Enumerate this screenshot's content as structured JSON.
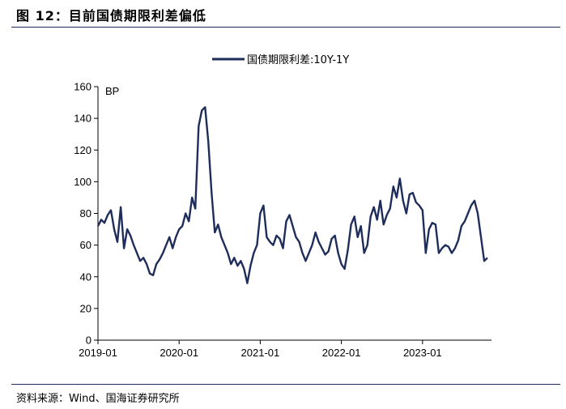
{
  "figure": {
    "title": "图 12：目前国债期限利差偏低",
    "source": "资料来源：Wind、国海证券研究所"
  },
  "chart_data": {
    "type": "line",
    "title": "图 12：目前国债期限利差偏低",
    "xlabel": "",
    "ylabel": "BP",
    "ylim": [
      0,
      160
    ],
    "yticks": [
      "0",
      "20",
      "40",
      "60",
      "80",
      "100",
      "120",
      "140",
      "160"
    ],
    "xticks": [
      "2019-01",
      "2020-01",
      "2021-01",
      "2022-01",
      "2023-01"
    ],
    "xlim_years": [
      2019.0,
      2023.85
    ],
    "legend": "top-center",
    "grid": false,
    "colors": {
      "series": "#1f2d5a",
      "axis": "#000000"
    },
    "series": [
      {
        "name": "国债期限利差:10Y-1Y",
        "x": [
          2019.0,
          2019.04,
          2019.08,
          2019.12,
          2019.16,
          2019.2,
          2019.24,
          2019.28,
          2019.32,
          2019.36,
          2019.4,
          2019.44,
          2019.48,
          2019.52,
          2019.56,
          2019.6,
          2019.64,
          2019.68,
          2019.72,
          2019.76,
          2019.8,
          2019.84,
          2019.88,
          2019.92,
          2019.96,
          2020.0,
          2020.04,
          2020.08,
          2020.12,
          2020.16,
          2020.2,
          2020.24,
          2020.28,
          2020.32,
          2020.36,
          2020.4,
          2020.44,
          2020.48,
          2020.52,
          2020.56,
          2020.6,
          2020.64,
          2020.68,
          2020.72,
          2020.76,
          2020.8,
          2020.84,
          2020.88,
          2020.92,
          2020.96,
          2021.0,
          2021.04,
          2021.08,
          2021.12,
          2021.16,
          2021.2,
          2021.24,
          2021.28,
          2021.32,
          2021.36,
          2021.4,
          2021.44,
          2021.48,
          2021.52,
          2021.56,
          2021.6,
          2021.64,
          2021.68,
          2021.72,
          2021.76,
          2021.8,
          2021.84,
          2021.88,
          2021.92,
          2021.96,
          2022.0,
          2022.04,
          2022.08,
          2022.12,
          2022.16,
          2022.2,
          2022.24,
          2022.28,
          2022.32,
          2022.36,
          2022.4,
          2022.44,
          2022.48,
          2022.52,
          2022.56,
          2022.6,
          2022.64,
          2022.68,
          2022.72,
          2022.76,
          2022.8,
          2022.84,
          2022.88,
          2022.92,
          2022.96,
          2023.0,
          2023.04,
          2023.08,
          2023.12,
          2023.16,
          2023.2,
          2023.24,
          2023.28,
          2023.32,
          2023.36,
          2023.4,
          2023.44,
          2023.48,
          2023.52,
          2023.56,
          2023.6,
          2023.64,
          2023.68,
          2023.72,
          2023.76,
          2023.8
        ],
        "values": [
          72,
          76,
          74,
          79,
          82,
          70,
          62,
          84,
          58,
          70,
          66,
          60,
          55,
          50,
          52,
          48,
          42,
          41,
          48,
          51,
          55,
          60,
          65,
          58,
          65,
          70,
          72,
          80,
          75,
          90,
          83,
          135,
          145,
          147,
          125,
          93,
          68,
          73,
          65,
          60,
          55,
          48,
          52,
          47,
          50,
          45,
          36,
          47,
          55,
          60,
          80,
          85,
          65,
          62,
          60,
          66,
          64,
          58,
          75,
          79,
          72,
          65,
          62,
          55,
          50,
          55,
          60,
          68,
          62,
          58,
          54,
          56,
          64,
          66,
          55,
          48,
          45,
          57,
          73,
          78,
          65,
          72,
          55,
          60,
          78,
          84,
          76,
          88,
          73,
          79,
          83,
          97,
          90,
          102,
          88,
          80,
          92,
          93,
          87,
          85,
          82,
          55,
          70,
          74,
          73,
          55,
          58,
          60,
          59,
          55,
          58,
          63,
          72,
          75,
          80,
          85,
          88,
          80,
          65,
          50,
          52
        ]
      }
    ]
  }
}
